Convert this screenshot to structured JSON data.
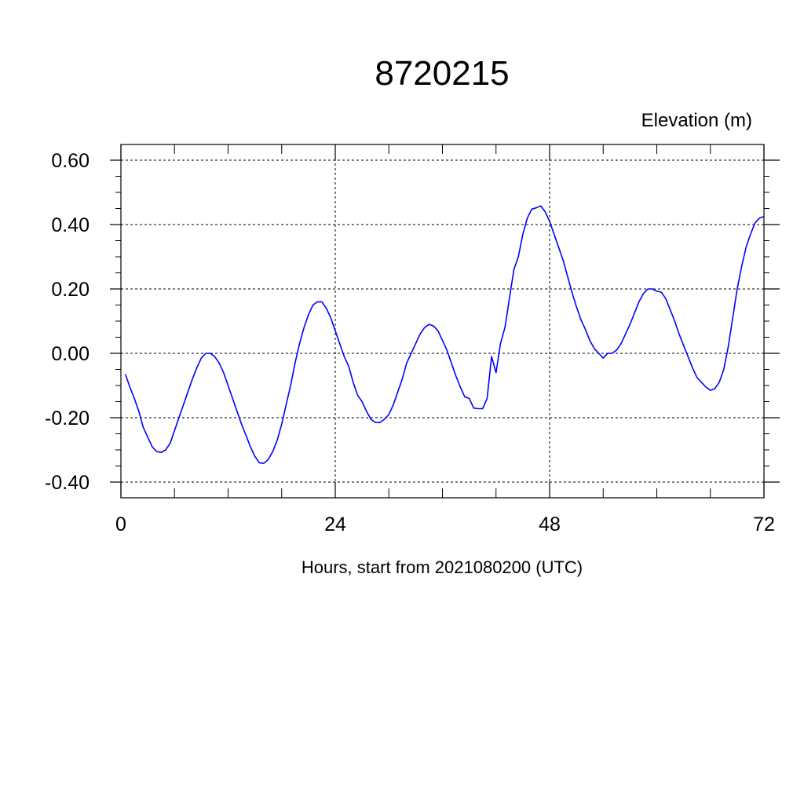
{
  "chart_data": {
    "type": "line",
    "title": "8720215",
    "ylabel": "Elevation (m)",
    "xlabel": "Hours, start from 2021080200 (UTC)",
    "xlim": [
      0,
      72
    ],
    "ylim": [
      -0.4,
      0.6
    ],
    "x_ticks": [
      0,
      24,
      48,
      72
    ],
    "x_tick_labels": [
      "0",
      "24",
      "48",
      "72"
    ],
    "y_ticks": [
      -0.4,
      -0.2,
      0.0,
      0.2,
      0.4,
      0.6
    ],
    "y_tick_labels": [
      "-0.40",
      "-0.20",
      "0.00",
      "0.20",
      "0.40",
      "0.60"
    ],
    "grid": true,
    "series": [
      {
        "color": "#0000ff",
        "x": [
          0.5,
          1.0,
          1.5,
          2.0,
          2.5,
          3.0,
          3.5,
          4.0,
          4.5,
          5.0,
          5.5,
          6.0,
          6.5,
          7.0,
          7.5,
          8.0,
          8.5,
          9.0,
          9.5,
          10.0,
          10.5,
          11.0,
          11.5,
          12.0,
          12.5,
          13.0,
          13.5,
          14.0,
          14.5,
          15.0,
          15.5,
          16.0,
          16.5,
          17.0,
          17.5,
          18.0,
          18.5,
          19.0,
          19.5,
          20.0,
          20.5,
          21.0,
          21.5,
          22.0,
          22.5,
          23.0,
          23.5,
          24.0,
          24.5,
          25.0,
          25.5,
          26.0,
          26.5,
          27.0,
          27.5,
          28.0,
          28.5,
          29.0,
          29.5,
          30.0,
          30.5,
          31.0,
          31.5,
          32.0,
          32.5,
          33.0,
          33.5,
          34.0,
          34.5,
          35.0,
          35.5,
          36.0,
          36.5,
          37.0,
          37.5,
          38.0,
          38.5,
          39.0,
          39.5,
          40.0,
          40.5,
          41.0,
          41.5,
          42.0,
          42.5,
          43.0,
          43.5,
          44.0,
          44.5,
          45.0,
          45.5,
          46.0,
          46.5,
          47.0,
          47.5,
          48.0,
          48.5,
          49.0,
          49.5,
          50.0,
          50.5,
          51.0,
          51.5,
          52.0,
          52.5,
          53.0,
          53.5,
          54.0,
          54.5,
          55.0,
          55.5,
          56.0,
          56.5,
          57.0,
          57.5,
          58.0,
          58.5,
          59.0,
          59.5,
          60.0,
          60.5,
          61.0,
          61.5,
          62.0,
          62.5,
          63.0,
          63.5,
          64.0,
          64.5,
          65.0,
          65.5,
          66.0,
          66.5,
          67.0,
          67.5,
          68.0,
          68.5,
          69.0,
          69.5,
          70.0,
          70.5,
          71.0,
          71.5,
          72.0
        ],
        "y": [
          -0.065,
          -0.105,
          -0.14,
          -0.18,
          -0.23,
          -0.26,
          -0.29,
          -0.305,
          -0.308,
          -0.3,
          -0.28,
          -0.24,
          -0.2,
          -0.16,
          -0.12,
          -0.08,
          -0.045,
          -0.015,
          0.0,
          0.0,
          -0.01,
          -0.03,
          -0.06,
          -0.1,
          -0.14,
          -0.18,
          -0.22,
          -0.255,
          -0.29,
          -0.32,
          -0.34,
          -0.342,
          -0.33,
          -0.305,
          -0.27,
          -0.22,
          -0.16,
          -0.1,
          -0.03,
          0.03,
          0.08,
          0.12,
          0.15,
          0.16,
          0.16,
          0.14,
          0.11,
          0.07,
          0.03,
          -0.01,
          -0.04,
          -0.09,
          -0.13,
          -0.15,
          -0.18,
          -0.205,
          -0.215,
          -0.215,
          -0.205,
          -0.19,
          -0.16,
          -0.12,
          -0.08,
          -0.03,
          0.0,
          0.03,
          0.06,
          0.08,
          0.09,
          0.085,
          0.07,
          0.04,
          0.01,
          -0.03,
          -0.07,
          -0.105,
          -0.135,
          -0.14,
          -0.17,
          -0.172,
          -0.172,
          -0.14,
          -0.01,
          -0.06,
          0.03,
          0.08,
          0.17,
          0.26,
          0.3,
          0.37,
          0.42,
          0.448,
          0.452,
          0.458,
          0.44,
          0.41,
          0.37,
          0.33,
          0.29,
          0.24,
          0.19,
          0.145,
          0.105,
          0.075,
          0.04,
          0.015,
          0.0,
          -0.015,
          0.0,
          0.0,
          0.01,
          0.03,
          0.06,
          0.09,
          0.125,
          0.16,
          0.185,
          0.2,
          0.2,
          0.193,
          0.19,
          0.17,
          0.135,
          0.1,
          0.06,
          0.025,
          -0.01,
          -0.045,
          -0.075,
          -0.09,
          -0.105,
          -0.115,
          -0.11,
          -0.09,
          -0.05,
          0.02,
          0.11,
          0.2,
          0.27,
          0.33,
          0.37,
          0.405,
          0.42,
          0.425
        ]
      }
    ]
  }
}
